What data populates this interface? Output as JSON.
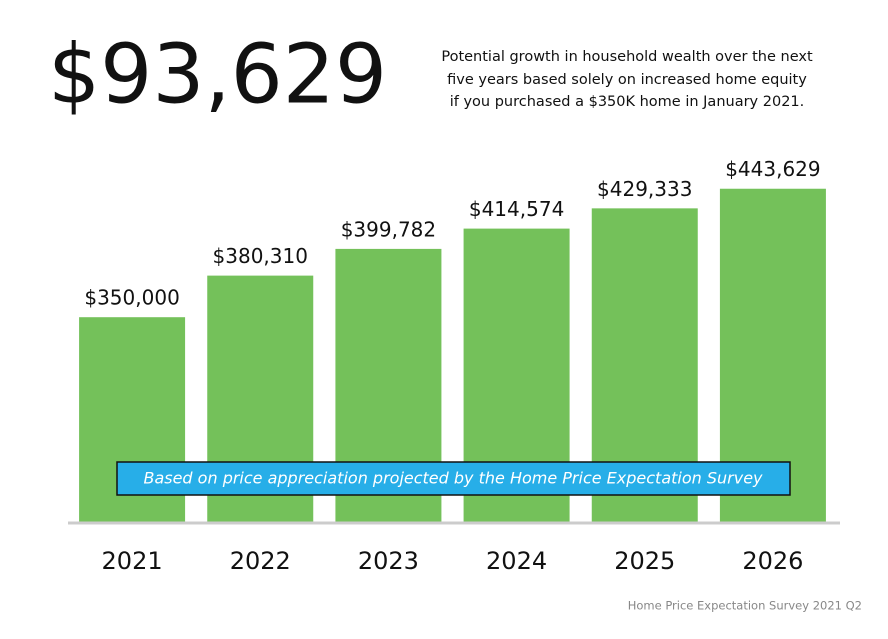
{
  "chart_data": {
    "type": "bar",
    "headline": "$93,629",
    "subtitle": [
      "Potential growth in household wealth over the next",
      "five years based solely on increased home equity",
      "if you purchased a $350K home in January 2021."
    ],
    "annotation": "Based on price appreciation projected by the Home Price Expectation Survey",
    "source": "Home Price Expectation Survey 2021 Q2",
    "categories": [
      "2021",
      "2022",
      "2023",
      "2024",
      "2025",
      "2026"
    ],
    "values": [
      350000,
      380310,
      399782,
      414574,
      429333,
      443629
    ],
    "value_labels": [
      "$350,000",
      "$380,310",
      "$399,782",
      "$414,574",
      "$429,333",
      "$443,629"
    ],
    "color": "#74c15a",
    "ylim": [
      200000,
      450000
    ]
  }
}
